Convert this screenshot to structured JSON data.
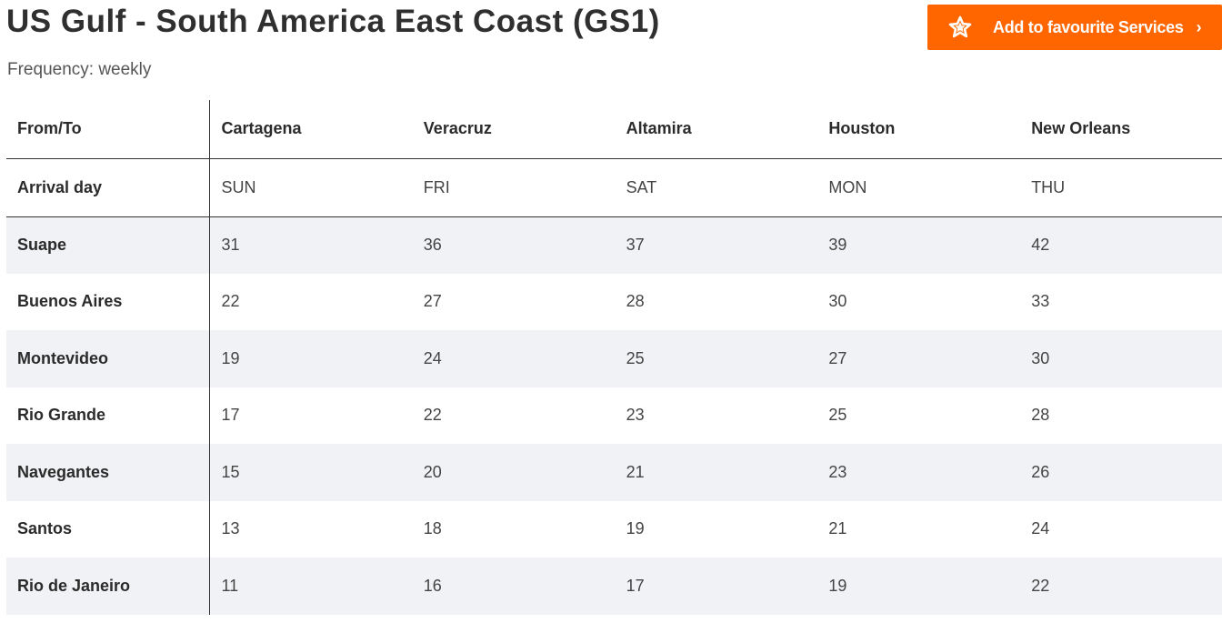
{
  "header": {
    "title": "US Gulf - South America East Coast (GS1)",
    "frequency": "Frequency: weekly"
  },
  "favourite_button": {
    "label": "Add to favourite Services",
    "icon": "star-icon",
    "chevron": "›",
    "color": "#ff6600"
  },
  "table": {
    "corner_header": "From/To",
    "destinations": [
      "Cartagena",
      "Veracruz",
      "Altamira",
      "Houston",
      "New Orleans"
    ],
    "arrival_label": "Arrival day",
    "arrival_days": [
      "SUN",
      "FRI",
      "SAT",
      "MON",
      "THU"
    ],
    "rows": [
      {
        "origin": "Suape",
        "values": [
          "31",
          "36",
          "37",
          "39",
          "42"
        ]
      },
      {
        "origin": "Buenos Aires",
        "values": [
          "22",
          "27",
          "28",
          "30",
          "33"
        ]
      },
      {
        "origin": "Montevideo",
        "values": [
          "19",
          "24",
          "25",
          "27",
          "30"
        ]
      },
      {
        "origin": "Rio Grande",
        "values": [
          "17",
          "22",
          "23",
          "25",
          "28"
        ]
      },
      {
        "origin": "Navegantes",
        "values": [
          "15",
          "20",
          "21",
          "23",
          "26"
        ]
      },
      {
        "origin": "Santos",
        "values": [
          "13",
          "18",
          "19",
          "21",
          "24"
        ]
      },
      {
        "origin": "Rio de Janeiro",
        "values": [
          "11",
          "16",
          "17",
          "19",
          "22"
        ]
      }
    ]
  }
}
